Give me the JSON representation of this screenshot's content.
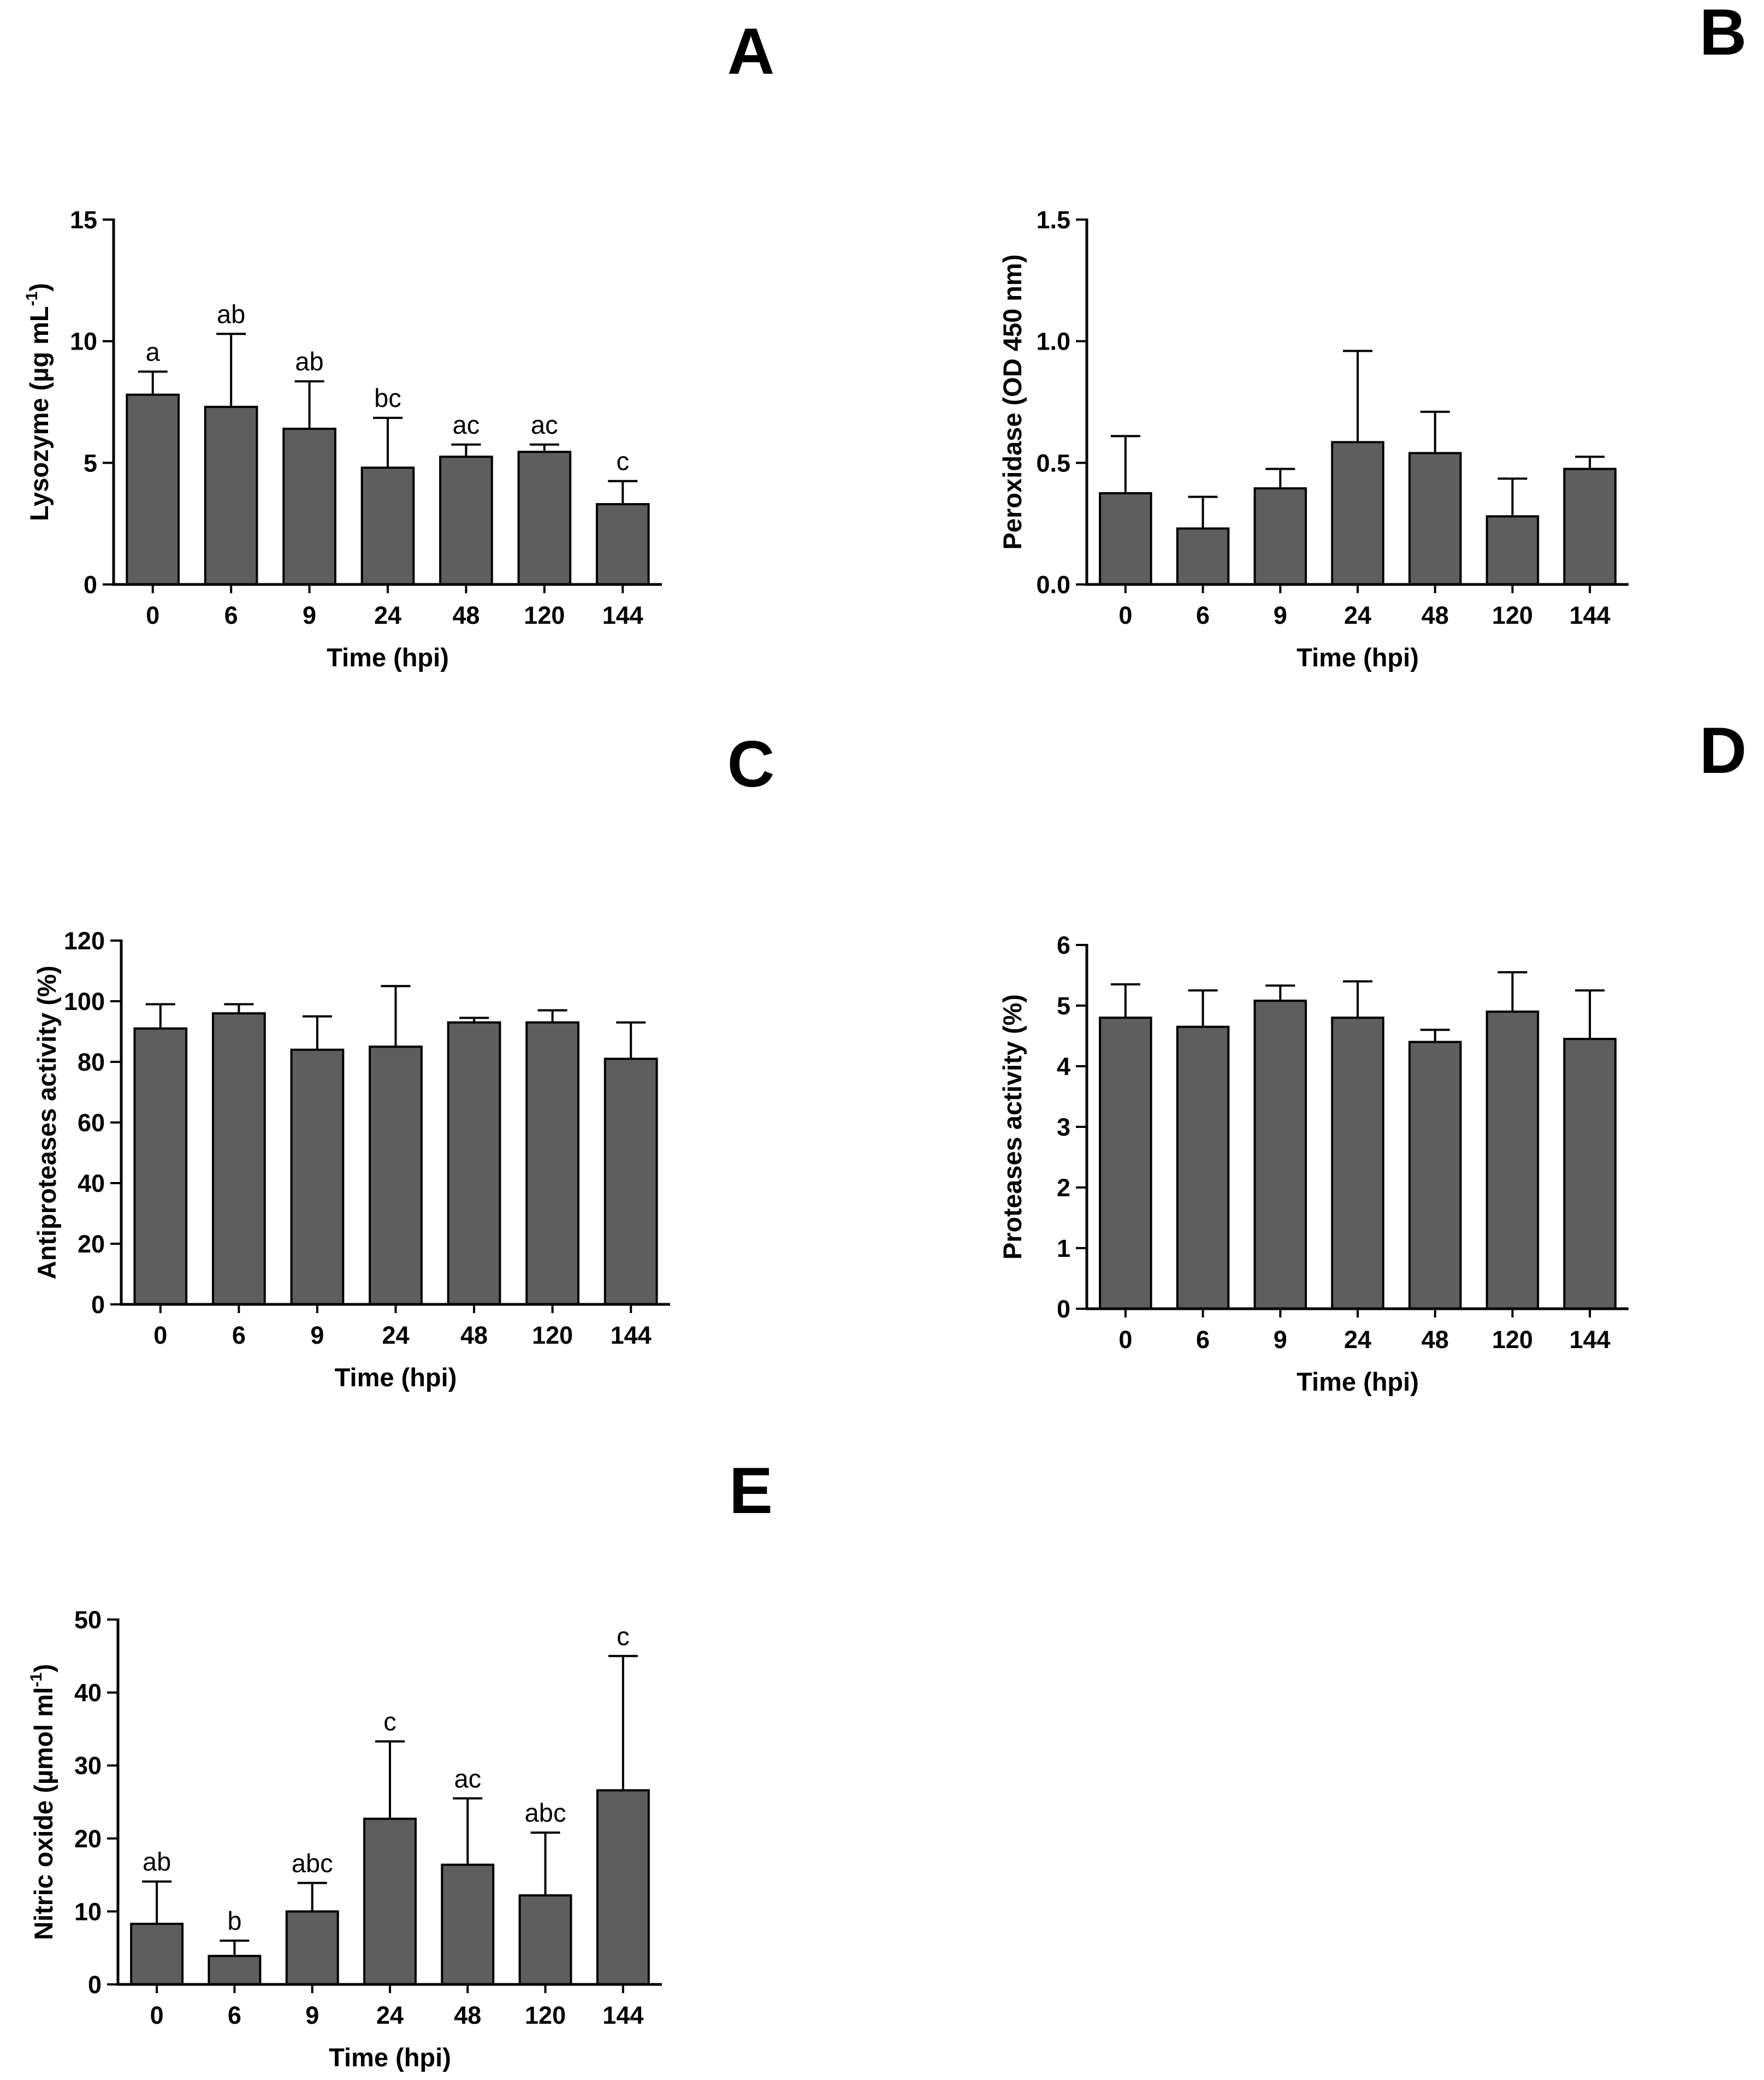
{
  "chart_data": [
    {
      "panel": "A",
      "type": "bar",
      "xlabel": "Time (hpi)",
      "ylabel_parts": [
        "Lysozyme (µg mL",
        "-1",
        ")"
      ],
      "categories": [
        "0",
        "6",
        "9",
        "24",
        "48",
        "120",
        "144"
      ],
      "values": [
        7.8,
        7.3,
        6.4,
        4.8,
        5.25,
        5.45,
        3.3
      ],
      "errors": [
        0.95,
        3.0,
        1.95,
        2.05,
        0.5,
        0.3,
        0.95
      ],
      "letters": [
        "a",
        "ab",
        "ab",
        "bc",
        "ac",
        "ac",
        "c"
      ],
      "ylim": [
        0,
        15
      ],
      "yticks": [
        0,
        5,
        10,
        15
      ],
      "ytick_labels": [
        "0",
        "5",
        "10",
        "15"
      ],
      "bar_color": "#5e5e5e"
    },
    {
      "panel": "B",
      "type": "bar",
      "xlabel": "Time (hpi)",
      "ylabel_parts": [
        "Peroxidase (OD 450 nm)"
      ],
      "categories": [
        "0",
        "6",
        "9",
        "24",
        "48",
        "120",
        "144"
      ],
      "values": [
        0.375,
        0.23,
        0.395,
        0.585,
        0.54,
        0.28,
        0.475
      ],
      "errors": [
        0.235,
        0.13,
        0.08,
        0.375,
        0.17,
        0.155,
        0.05
      ],
      "ylim": [
        0,
        1.5
      ],
      "yticks": [
        0,
        0.5,
        1.0,
        1.5
      ],
      "ytick_labels": [
        "0.0",
        "0.5",
        "1.0",
        "1.5"
      ],
      "bar_color": "#5e5e5e"
    },
    {
      "panel": "C",
      "type": "bar",
      "xlabel": "Time (hpi)",
      "ylabel_parts": [
        "Antiproteases activity (%)"
      ],
      "categories": [
        "0",
        "6",
        "9",
        "24",
        "48",
        "120",
        "144"
      ],
      "values": [
        91,
        96,
        84,
        85,
        93,
        93,
        81
      ],
      "errors": [
        8,
        3,
        11,
        20,
        1.5,
        4,
        12
      ],
      "ylim": [
        0,
        120
      ],
      "yticks": [
        0,
        20,
        40,
        60,
        80,
        100,
        120
      ],
      "ytick_labels": [
        "0",
        "20",
        "40",
        "60",
        "80",
        "100",
        "120"
      ],
      "bar_color": "#5e5e5e"
    },
    {
      "panel": "D",
      "type": "bar",
      "xlabel": "Time (hpi)",
      "ylabel_parts": [
        "Proteases activity (%)"
      ],
      "categories": [
        "0",
        "6",
        "9",
        "24",
        "48",
        "120",
        "144"
      ],
      "values": [
        4.8,
        4.65,
        5.08,
        4.8,
        4.4,
        4.9,
        4.45
      ],
      "errors": [
        0.55,
        0.6,
        0.25,
        0.6,
        0.2,
        0.65,
        0.8
      ],
      "ylim": [
        0,
        6
      ],
      "yticks": [
        0,
        1,
        2,
        3,
        4,
        5,
        6
      ],
      "ytick_labels": [
        "0",
        "1",
        "2",
        "3",
        "4",
        "5",
        "6"
      ],
      "bar_color": "#5e5e5e"
    },
    {
      "panel": "E",
      "type": "bar",
      "xlabel": "Time (hpi)",
      "ylabel_parts": [
        "Nitric oxide (µmol ml",
        "-1",
        ")"
      ],
      "categories": [
        "0",
        "6",
        "9",
        "24",
        "48",
        "120",
        "144"
      ],
      "values": [
        8.3,
        3.9,
        10.0,
        22.7,
        16.4,
        12.2,
        26.6
      ],
      "errors": [
        5.8,
        2.1,
        3.9,
        10.6,
        9.1,
        8.6,
        18.4
      ],
      "letters": [
        "ab",
        "b",
        "abc",
        "c",
        "ac",
        "abc",
        "c"
      ],
      "ylim": [
        0,
        50
      ],
      "yticks": [
        0,
        10,
        20,
        30,
        40,
        50
      ],
      "ytick_labels": [
        "0",
        "10",
        "20",
        "30",
        "40",
        "50"
      ],
      "bar_color": "#5e5e5e"
    }
  ]
}
